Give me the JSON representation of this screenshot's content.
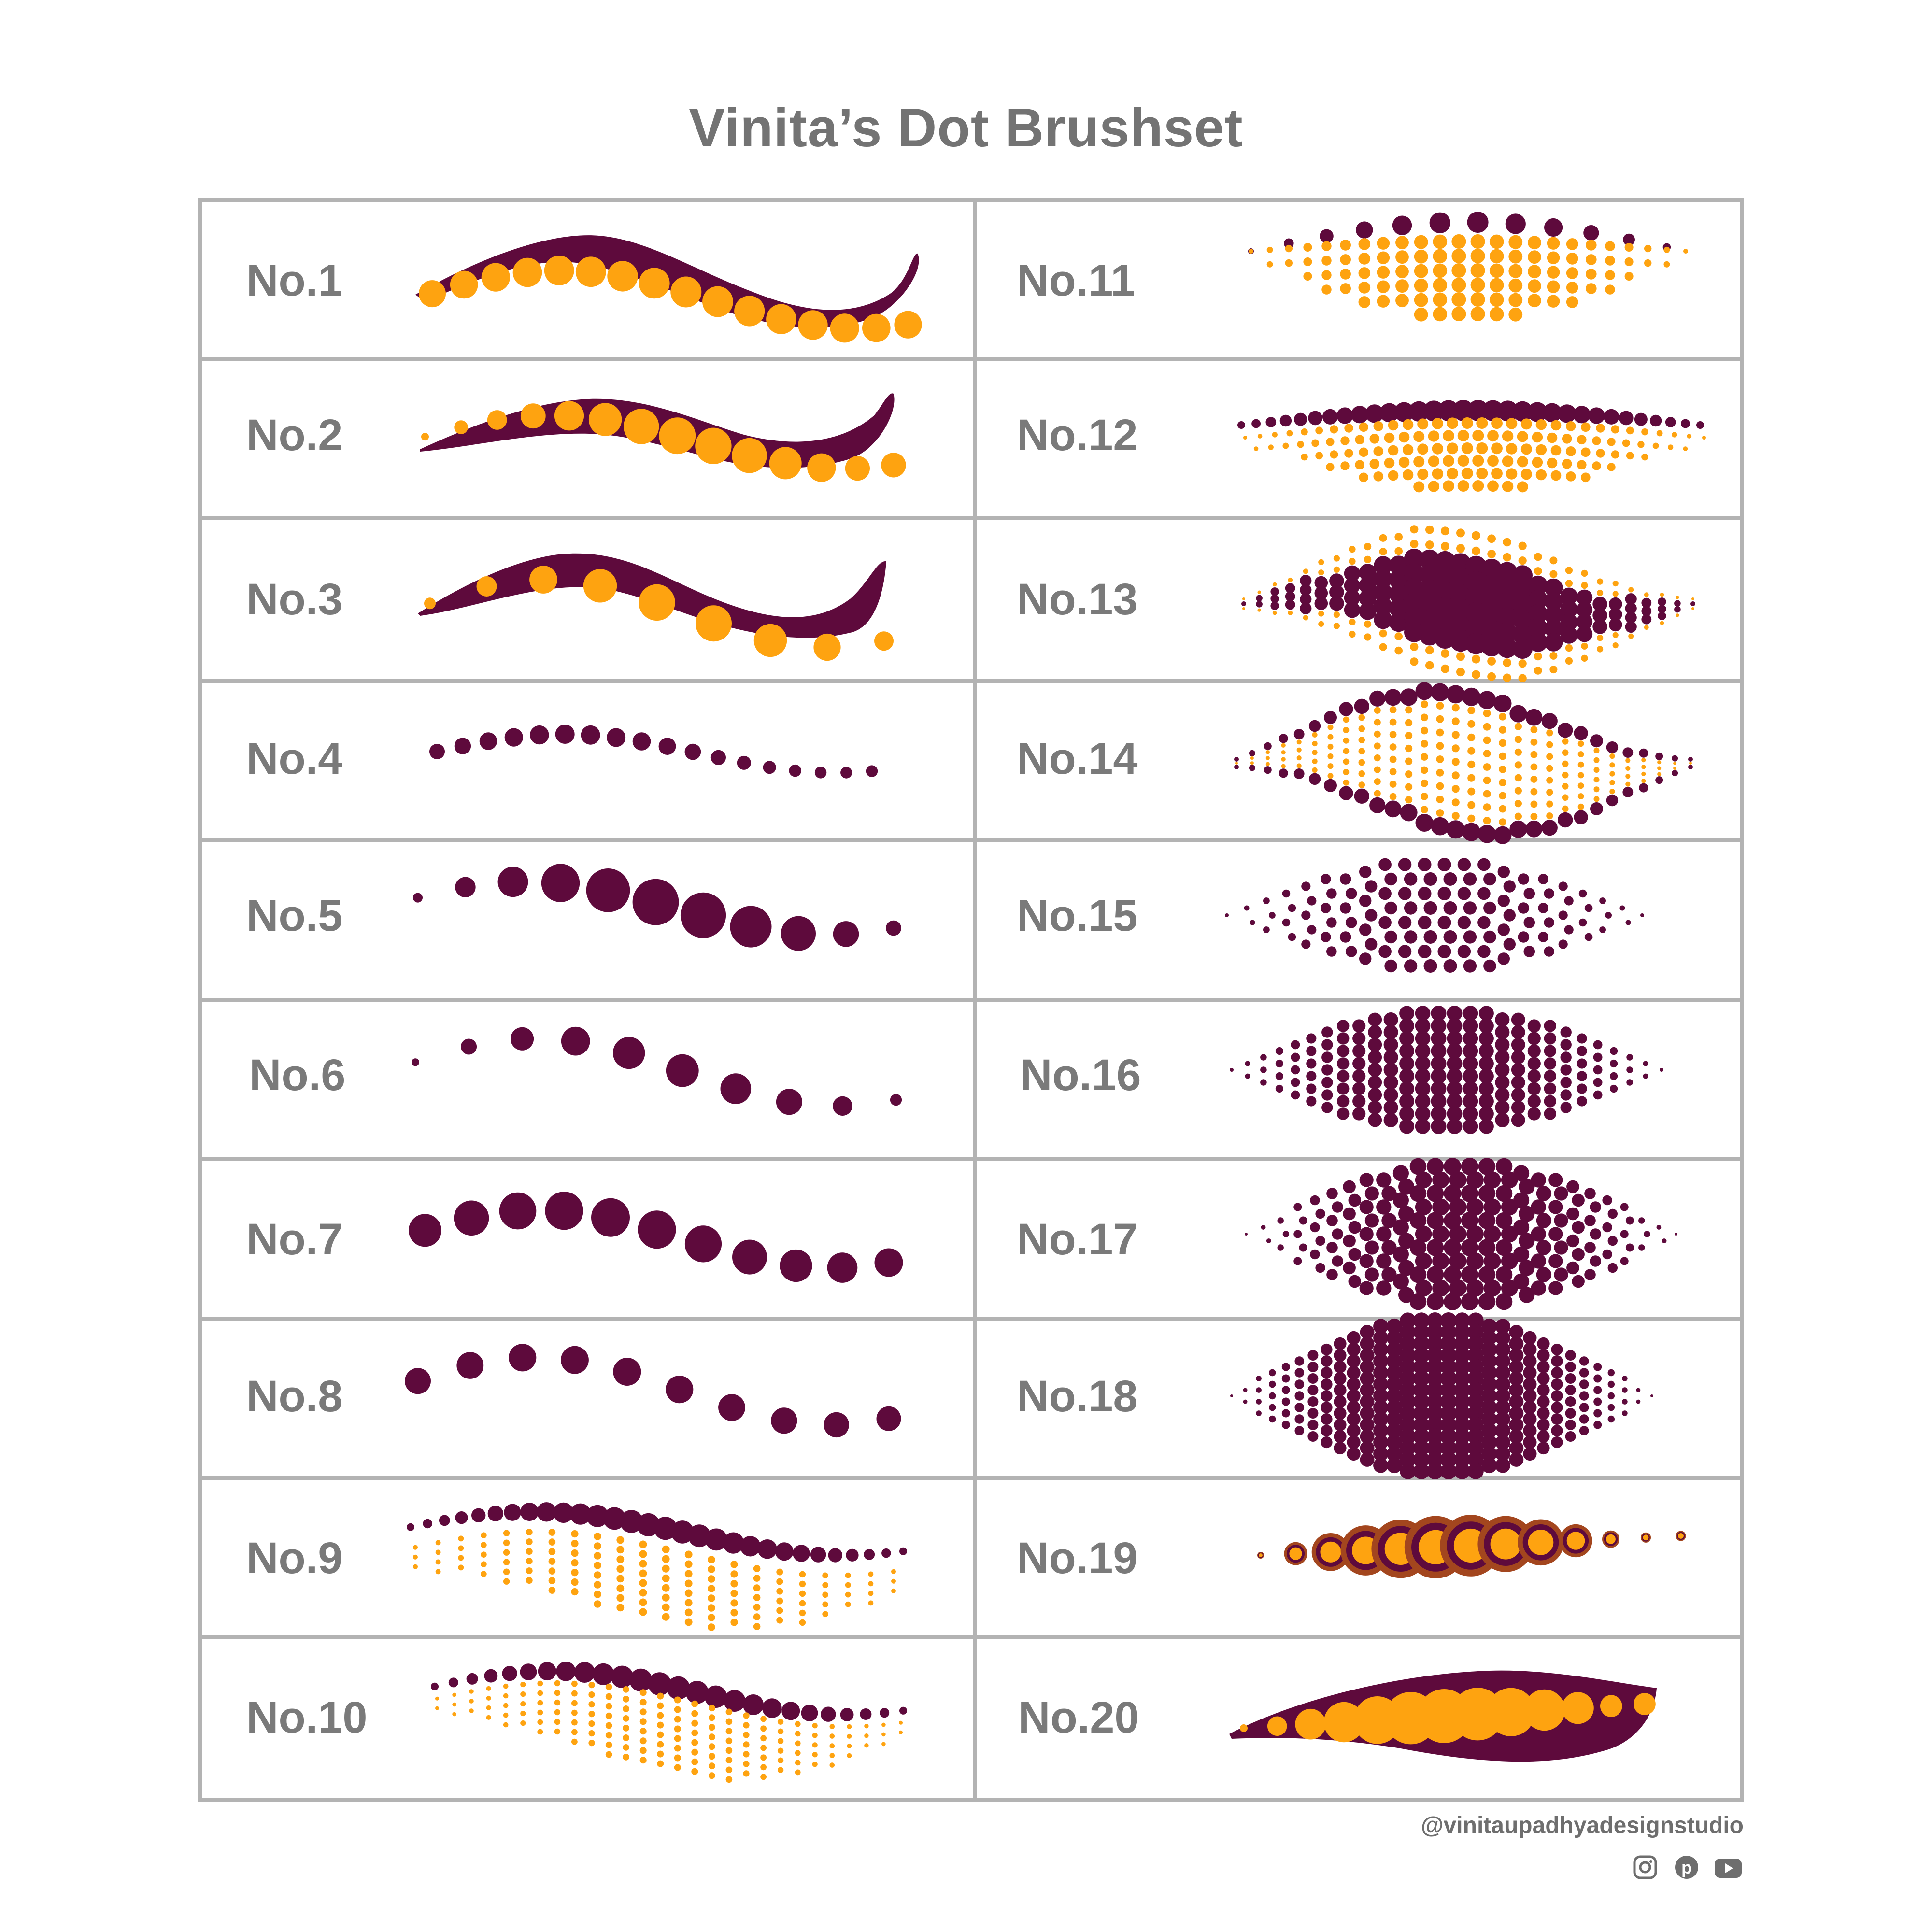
{
  "title": "Vinita’s Dot Brushset",
  "brushes": [
    {
      "label": "No.1"
    },
    {
      "label": "No.2"
    },
    {
      "label": "No.3"
    },
    {
      "label": "No.4"
    },
    {
      "label": "No.5"
    },
    {
      "label": "No.6"
    },
    {
      "label": "No.7"
    },
    {
      "label": "No.8"
    },
    {
      "label": "No.9"
    },
    {
      "label": "No.10"
    },
    {
      "label": "No.11"
    },
    {
      "label": "No.12"
    },
    {
      "label": "No.13"
    },
    {
      "label": "No.14"
    },
    {
      "label": "No.15"
    },
    {
      "label": "No.16"
    },
    {
      "label": "No.17"
    },
    {
      "label": "No.18"
    },
    {
      "label": "No.19"
    },
    {
      "label": "No.20"
    }
  ],
  "footer": {
    "handle": "@vinitaupadhyadesignstudio",
    "icons": [
      "instagram-icon",
      "pinterest-icon",
      "youtube-icon"
    ]
  },
  "colors": {
    "plum": "#5e0a3c",
    "orange": "#fea310",
    "rust": "#a3461e",
    "grid": "#b3b3b3",
    "text": "#737373"
  }
}
